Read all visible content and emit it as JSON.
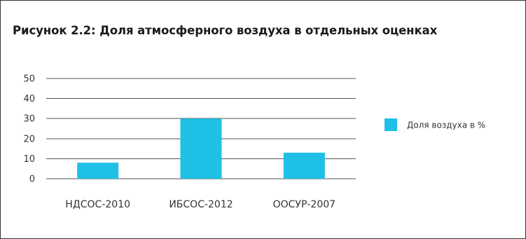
{
  "chart_data": {
    "type": "bar",
    "title": "Рисунок 2.2: Доля атмосферного воздуха в отдельных оценках",
    "categories": [
      "НДСОС-2010",
      "ИБСОС-2012",
      "ООСУР-2007"
    ],
    "series": [
      {
        "name": "Доля воздуха в %",
        "values": [
          8,
          30,
          13
        ],
        "color": "#1ec0e6"
      }
    ],
    "ylim": [
      0,
      50
    ],
    "yticks": [
      0,
      10,
      20,
      30,
      40,
      50
    ],
    "grid": true,
    "legend": "right"
  }
}
